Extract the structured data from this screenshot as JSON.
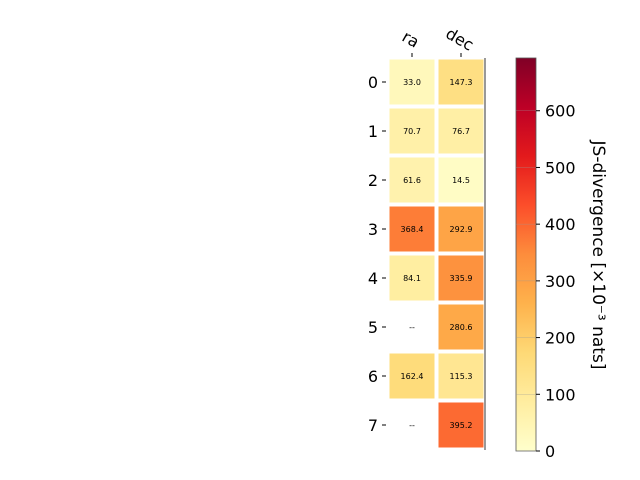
{
  "chart_data": {
    "type": "heatmap",
    "title": "",
    "columns": [
      "ra",
      "dec"
    ],
    "rows": [
      "0",
      "1",
      "2",
      "3",
      "4",
      "5",
      "6",
      "7"
    ],
    "values": [
      [
        33.0,
        147.3
      ],
      [
        70.7,
        76.7
      ],
      [
        61.6,
        14.5
      ],
      [
        368.4,
        292.9
      ],
      [
        84.1,
        335.9
      ],
      [
        null,
        280.6
      ],
      [
        162.4,
        115.3
      ],
      [
        null,
        395.2
      ]
    ],
    "cell_labels": [
      [
        "33.0",
        "147.3"
      ],
      [
        "70.7",
        "76.7"
      ],
      [
        "61.6",
        "14.5"
      ],
      [
        "368.4",
        "292.9"
      ],
      [
        "84.1",
        "335.9"
      ],
      [
        "--",
        "280.6"
      ],
      [
        "162.4",
        "115.3"
      ],
      [
        "--",
        "395.2"
      ]
    ],
    "colorbar": {
      "label": "JS-divergence [×10⁻³ nats]",
      "range": [
        0,
        693
      ],
      "ticks": [
        0,
        100,
        200,
        300,
        400,
        500,
        600
      ],
      "tick_labels": [
        "0",
        "100",
        "200",
        "300",
        "400",
        "500",
        "600"
      ],
      "colormap": "YlOrRd",
      "colormap_stops": [
        "#ffffcc",
        "#ffeda0",
        "#fed976",
        "#feb24c",
        "#fd8d3c",
        "#fc4e2a",
        "#e31a1c",
        "#bd0026",
        "#800026"
      ]
    },
    "grid": false
  }
}
